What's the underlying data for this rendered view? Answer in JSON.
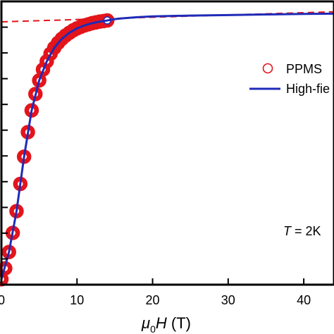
{
  "chart_data": {
    "type": "line",
    "xlabel": {
      "prefix": "μ",
      "sub": "0",
      "var": "H",
      "unit": " (T)"
    },
    "xlim": [
      0,
      44
    ],
    "xticks": [
      0,
      10,
      20,
      30,
      40
    ],
    "ylim": [
      0,
      1.04
    ],
    "yticks_count": 11,
    "legend": {
      "placement": "right",
      "entries": [
        "PPMS",
        "High-fie"
      ]
    },
    "annotation": {
      "var": "T",
      "text": " = 2K"
    },
    "colors": {
      "ppms": "#e4141b",
      "highfield": "#1f2bb8",
      "reference": "#e4141b",
      "axis": "#000000"
    },
    "series": [
      {
        "name": "PPMS",
        "style": "open-circles",
        "x": [
          0,
          0.5,
          1,
          1.5,
          2,
          2.5,
          3,
          3.5,
          4,
          4.5,
          5,
          5.5,
          6,
          6.5,
          7,
          7.5,
          8,
          8.5,
          9,
          9.5,
          10,
          10.5,
          11,
          11.5,
          12,
          12.5,
          13,
          13.5,
          14
        ],
        "y": [
          0.02,
          0.06,
          0.12,
          0.19,
          0.27,
          0.37,
          0.47,
          0.56,
          0.64,
          0.7,
          0.75,
          0.79,
          0.82,
          0.848,
          0.87,
          0.888,
          0.903,
          0.915,
          0.925,
          0.934,
          0.941,
          0.947,
          0.952,
          0.956,
          0.96,
          0.963,
          0.966,
          0.968,
          0.97
        ]
      },
      {
        "name": "High-fie",
        "style": "solid-line",
        "x": [
          0,
          1,
          2,
          3,
          4,
          5,
          6,
          7,
          8,
          9,
          10,
          11,
          12,
          13,
          14,
          15,
          16,
          18,
          20,
          25,
          30,
          35,
          40,
          44
        ],
        "y": [
          0.02,
          0.12,
          0.27,
          0.47,
          0.64,
          0.75,
          0.82,
          0.87,
          0.903,
          0.925,
          0.941,
          0.952,
          0.96,
          0.966,
          0.97,
          0.975,
          0.978,
          0.982,
          0.985,
          0.988,
          0.99,
          0.992,
          0.994,
          0.995
        ]
      },
      {
        "name": "",
        "style": "dashed-line",
        "x": [
          0,
          44
        ],
        "y": [
          0.965,
          1.002
        ]
      }
    ]
  }
}
